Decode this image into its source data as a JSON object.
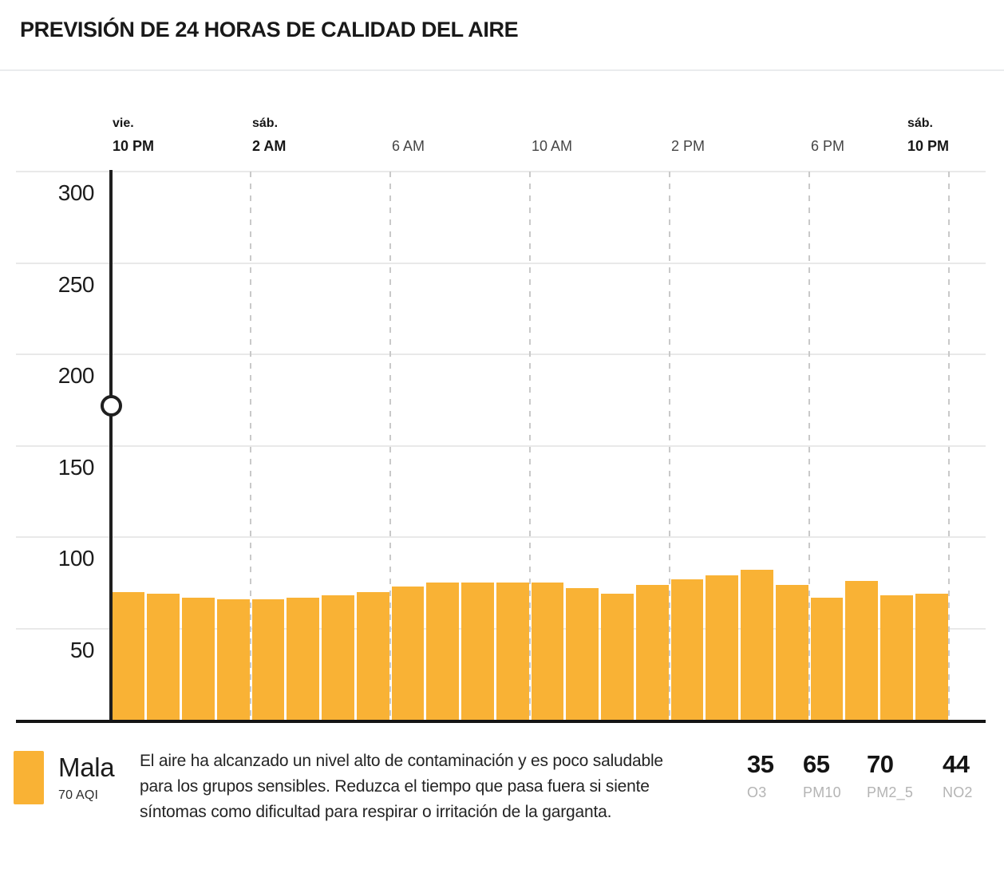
{
  "title": "PREVISIÓN DE 24 HORAS DE CALIDAD DEL AIRE",
  "chart_data": {
    "type": "bar",
    "unit": "AQI",
    "ylim": [
      0,
      300
    ],
    "yticks": [
      50,
      100,
      150,
      200,
      250,
      300
    ],
    "grid": "horizontal-solid, vertical-dashed-every-4h",
    "bar_color": "#F9B235",
    "x_ticks": [
      {
        "day": "vie.",
        "time": "10 PM",
        "bold": true
      },
      {
        "day": "sáb.",
        "time": "2 AM",
        "bold": true
      },
      {
        "day": "",
        "time": "6 AM",
        "bold": false
      },
      {
        "day": "",
        "time": "10 AM",
        "bold": false
      },
      {
        "day": "",
        "time": "2 PM",
        "bold": false
      },
      {
        "day": "",
        "time": "6 PM",
        "bold": false
      },
      {
        "day": "sáb.",
        "time": "10 PM",
        "bold": true
      }
    ],
    "values": [
      70,
      69,
      67,
      66,
      66,
      67,
      68,
      70,
      73,
      75,
      75,
      75,
      75,
      72,
      69,
      74,
      77,
      79,
      82,
      74,
      67,
      76,
      68,
      69
    ],
    "current_time_marker": {
      "at_tick": "vie. 10 PM",
      "value": 172
    }
  },
  "legend": {
    "category_label": "Mala",
    "aqi_label": "70 AQI",
    "swatch_color": "#F9B235",
    "description": "El aire ha alcanzado un nivel alto de contaminación y es poco saludable para los grupos sensibles. Reduzca el tiempo que pasa fuera si siente síntomas como dificultad para respirar o irritación de la garganta."
  },
  "pollutants": [
    {
      "value": "35",
      "label": "O3"
    },
    {
      "value": "65",
      "label": "PM10"
    },
    {
      "value": "70",
      "label": "PM2_5"
    },
    {
      "value": "44",
      "label": "NO2"
    }
  ]
}
